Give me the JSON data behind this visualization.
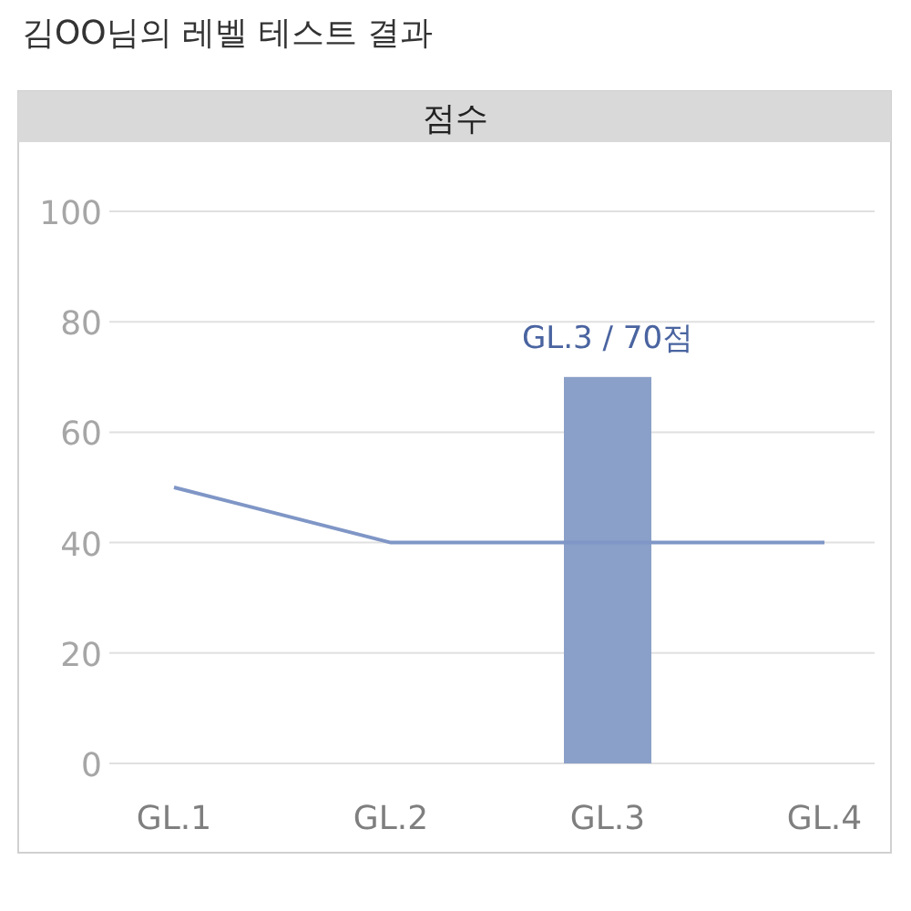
{
  "chart_data": {
    "type": "bar",
    "title": "김OO님의 레벨 테스트 결과",
    "subtitle": "점수",
    "categories": [
      "GL.1",
      "GL.2",
      "GL.3",
      "GL.4"
    ],
    "series": [
      {
        "color": "#8aa0c8",
        "values": [
          null,
          null,
          70,
          null
        ],
        "value_labels": [
          null,
          null,
          "GL.3 / 70점",
          null
        ]
      },
      {
        "type": "line",
        "color": "#7f96c6",
        "values": [
          50,
          40,
          40,
          40
        ]
      }
    ],
    "ylim": [
      0,
      100
    ],
    "yticks": [
      0,
      20,
      40,
      60,
      80,
      100
    ],
    "grid": "y"
  }
}
